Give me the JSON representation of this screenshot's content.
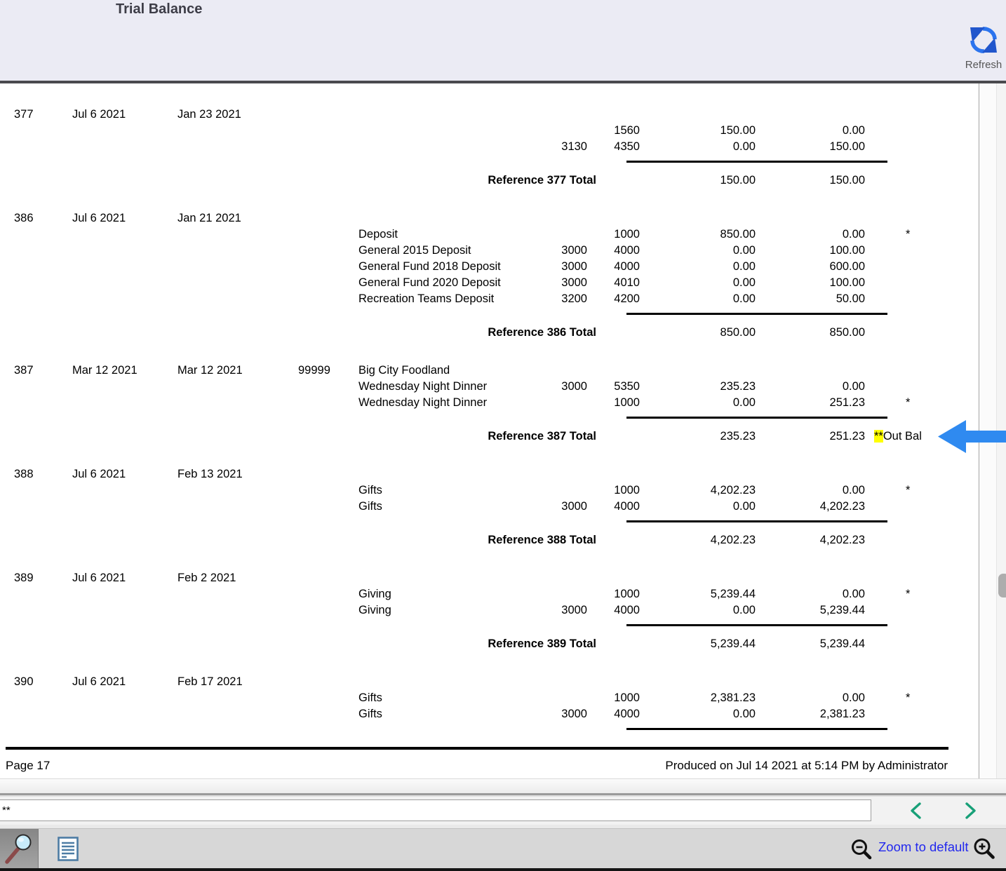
{
  "colors": {
    "arrow_blue": "#2f8af0",
    "highlight_yellow": "#ffff00",
    "link_blue": "#2228ee",
    "chevron_teal": "#18a078",
    "refresh_blue": "#2b74ee"
  },
  "header": {
    "title": "Trial Balance",
    "refresh_label": "Refresh"
  },
  "report": {
    "groups": [
      {
        "ref": "377",
        "posted": "Jul 6 2021",
        "original": "Jan 23 2021",
        "vendor": "",
        "desc": "",
        "entries": [
          {
            "desc": "",
            "fund": "",
            "acct": "1560",
            "debit": "150.00",
            "credit": "0.00",
            "flag": ""
          },
          {
            "desc": "",
            "fund": "3130",
            "acct": "4350",
            "debit": "0.00",
            "credit": "150.00",
            "flag": ""
          }
        ],
        "total": {
          "label": "Reference 377 Total",
          "debit": "150.00",
          "credit": "150.00",
          "stars": "",
          "note": "",
          "arrow": false
        }
      },
      {
        "ref": "386",
        "posted": "Jul 6 2021",
        "original": "Jan 21 2021",
        "vendor": "",
        "desc": "",
        "entries": [
          {
            "desc": "Deposit",
            "fund": "",
            "acct": "1000",
            "debit": "850.00",
            "credit": "0.00",
            "flag": "*"
          },
          {
            "desc": "General 2015 Deposit",
            "fund": "3000",
            "acct": "4000",
            "debit": "0.00",
            "credit": "100.00",
            "flag": ""
          },
          {
            "desc": "General Fund 2018 Deposit",
            "fund": "3000",
            "acct": "4000",
            "debit": "0.00",
            "credit": "600.00",
            "flag": ""
          },
          {
            "desc": "General Fund 2020 Deposit",
            "fund": "3000",
            "acct": "4010",
            "debit": "0.00",
            "credit": "100.00",
            "flag": ""
          },
          {
            "desc": "Recreation Teams Deposit",
            "fund": "3200",
            "acct": "4200",
            "debit": "0.00",
            "credit": "50.00",
            "flag": ""
          }
        ],
        "total": {
          "label": "Reference 386 Total",
          "debit": "850.00",
          "credit": "850.00",
          "stars": "",
          "note": "",
          "arrow": false
        }
      },
      {
        "ref": "387",
        "posted": "Mar 12 2021",
        "original": "Mar 12 2021",
        "vendor": "99999",
        "desc": "Big City Foodland",
        "entries": [
          {
            "desc": "Wednesday Night Dinner",
            "fund": "3000",
            "acct": "5350",
            "debit": "235.23",
            "credit": "0.00",
            "flag": ""
          },
          {
            "desc": "Wednesday Night Dinner",
            "fund": "",
            "acct": "1000",
            "debit": "0.00",
            "credit": "251.23",
            "flag": "*"
          }
        ],
        "total": {
          "label": "Reference 387 Total",
          "debit": "235.23",
          "credit": "251.23",
          "stars": "**",
          "note": "Out Bal",
          "arrow": true
        }
      },
      {
        "ref": "388",
        "posted": "Jul 6 2021",
        "original": "Feb 13 2021",
        "vendor": "",
        "desc": "",
        "entries": [
          {
            "desc": "Gifts",
            "fund": "",
            "acct": "1000",
            "debit": "4,202.23",
            "credit": "0.00",
            "flag": "*"
          },
          {
            "desc": "Gifts",
            "fund": "3000",
            "acct": "4000",
            "debit": "0.00",
            "credit": "4,202.23",
            "flag": ""
          }
        ],
        "total": {
          "label": "Reference 388 Total",
          "debit": "4,202.23",
          "credit": "4,202.23",
          "stars": "",
          "note": "",
          "arrow": false
        }
      },
      {
        "ref": "389",
        "posted": "Jul 6 2021",
        "original": "Feb 2 2021",
        "vendor": "",
        "desc": "",
        "entries": [
          {
            "desc": "Giving",
            "fund": "",
            "acct": "1000",
            "debit": "5,239.44",
            "credit": "0.00",
            "flag": "*"
          },
          {
            "desc": "Giving",
            "fund": "3000",
            "acct": "4000",
            "debit": "0.00",
            "credit": "5,239.44",
            "flag": ""
          }
        ],
        "total": {
          "label": "Reference 389 Total",
          "debit": "5,239.44",
          "credit": "5,239.44",
          "stars": "",
          "note": "",
          "arrow": false
        }
      },
      {
        "ref": "390",
        "posted": "Jul 6 2021",
        "original": "Feb 17 2021",
        "vendor": "",
        "desc": "",
        "entries": [
          {
            "desc": "Gifts",
            "fund": "",
            "acct": "1000",
            "debit": "2,381.23",
            "credit": "0.00",
            "flag": "*"
          },
          {
            "desc": "Gifts",
            "fund": "3000",
            "acct": "4000",
            "debit": "0.00",
            "credit": "2,381.23",
            "flag": ""
          }
        ],
        "total": null
      }
    ],
    "footer": {
      "page": "Page 17",
      "produced": "Produced on Jul 14 2021 at 5:14 PM by Administrator"
    }
  },
  "bottom": {
    "search_value": "**",
    "zoom_label": "Zoom to default"
  }
}
